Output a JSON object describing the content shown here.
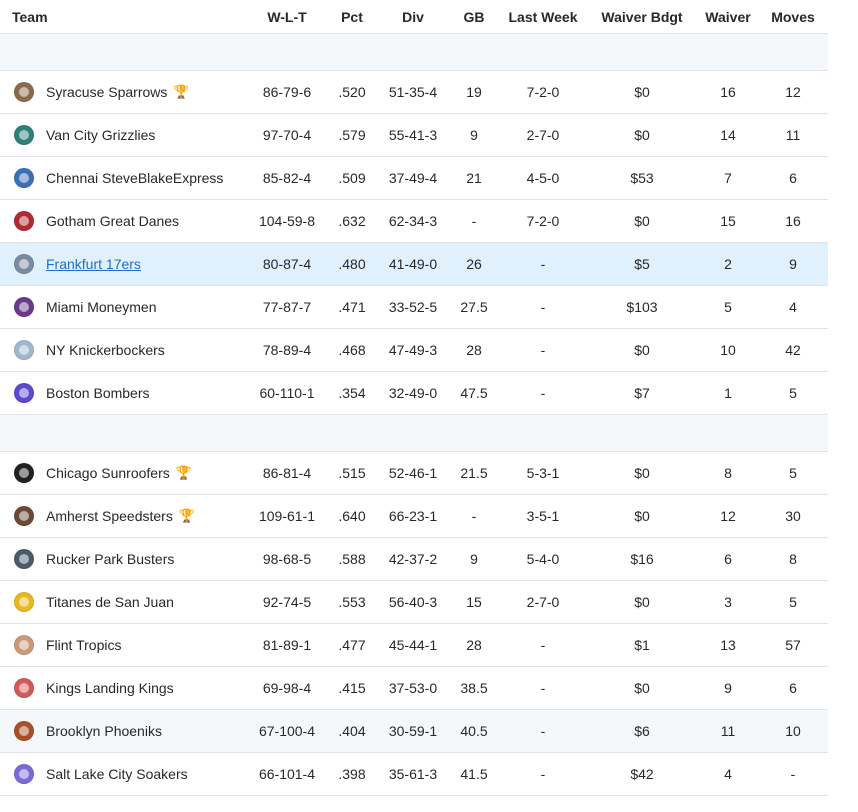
{
  "headers": {
    "team": "Team",
    "wlt": "W-L-T",
    "pct": "Pct",
    "div": "Div",
    "gb": "GB",
    "last_week": "Last Week",
    "waiver_bdgt": "Waiver Bdgt",
    "waiver": "Waiver",
    "moves": "Moves"
  },
  "colors": {
    "link": "#1d6fce",
    "highlight_row": "#e0f0fc",
    "divider": "#f5f8fa",
    "border": "#e0e4e9"
  },
  "division1": [
    {
      "team": "Syracuse Sparrows",
      "trophy": "bronze-trophy-icon",
      "logo": "#8a6a4a",
      "wlt": "86-79-6",
      "pct": ".520",
      "div": "51-35-4",
      "gb": "19",
      "last_week": "7-2-0",
      "bdgt": "$0",
      "waiver": "16",
      "moves": "12"
    },
    {
      "team": "Van City Grizzlies",
      "trophy": "",
      "logo": "#2f7f7a",
      "wlt": "97-70-4",
      "pct": ".579",
      "div": "55-41-3",
      "gb": "9",
      "last_week": "2-7-0",
      "bdgt": "$0",
      "waiver": "14",
      "moves": "11"
    },
    {
      "team": "Chennai SteveBlakeExpress",
      "trophy": "",
      "logo": "#3b6fb6",
      "wlt": "85-82-4",
      "pct": ".509",
      "div": "37-49-4",
      "gb": "21",
      "last_week": "4-5-0",
      "bdgt": "$53",
      "waiver": "7",
      "moves": "6"
    },
    {
      "team": "Gotham Great Danes",
      "trophy": "",
      "logo": "#b02a35",
      "wlt": "104-59-8",
      "pct": ".632",
      "div": "62-34-3",
      "gb": "-",
      "last_week": "7-2-0",
      "bdgt": "$0",
      "waiver": "15",
      "moves": "16"
    },
    {
      "team": "Frankfurt 17ers",
      "trophy": "",
      "logo": "#7a8aa0",
      "wlt": "80-87-4",
      "pct": ".480",
      "div": "41-49-0",
      "gb": "26",
      "last_week": "-",
      "bdgt": "$5",
      "waiver": "2",
      "moves": "9",
      "is_user": true
    },
    {
      "team": "Miami Moneymen",
      "trophy": "",
      "logo": "#6a3a8a",
      "wlt": "77-87-7",
      "pct": ".471",
      "div": "33-52-5",
      "gb": "27.5",
      "last_week": "-",
      "bdgt": "$103",
      "waiver": "5",
      "moves": "4"
    },
    {
      "team": "NY Knickerbockers",
      "trophy": "",
      "logo": "#9fb8cf",
      "wlt": "78-89-4",
      "pct": ".468",
      "div": "47-49-3",
      "gb": "28",
      "last_week": "-",
      "bdgt": "$0",
      "waiver": "10",
      "moves": "42"
    },
    {
      "team": "Boston Bombers",
      "trophy": "",
      "logo": "#5a4ad0",
      "wlt": "60-110-1",
      "pct": ".354",
      "div": "32-49-0",
      "gb": "47.5",
      "last_week": "-",
      "bdgt": "$7",
      "waiver": "1",
      "moves": "5"
    }
  ],
  "division2": [
    {
      "team": "Chicago Sunroofers",
      "trophy": "gold-trophy-icon",
      "logo": "#222222",
      "wlt": "86-81-4",
      "pct": ".515",
      "div": "52-46-1",
      "gb": "21.5",
      "last_week": "5-3-1",
      "bdgt": "$0",
      "waiver": "8",
      "moves": "5"
    },
    {
      "team": "Amherst Speedsters",
      "trophy": "silver-trophy-icon",
      "logo": "#6b4a3a",
      "wlt": "109-61-1",
      "pct": ".640",
      "div": "66-23-1",
      "gb": "-",
      "last_week": "3-5-1",
      "bdgt": "$0",
      "waiver": "12",
      "moves": "30"
    },
    {
      "team": "Rucker Park Busters",
      "trophy": "",
      "logo": "#4a5a6a",
      "wlt": "98-68-5",
      "pct": ".588",
      "div": "42-37-2",
      "gb": "9",
      "last_week": "5-4-0",
      "bdgt": "$16",
      "waiver": "6",
      "moves": "8"
    },
    {
      "team": "Titanes de San Juan",
      "trophy": "",
      "logo": "#e8b820",
      "wlt": "92-74-5",
      "pct": ".553",
      "div": "56-40-3",
      "gb": "15",
      "last_week": "2-7-0",
      "bdgt": "$0",
      "waiver": "3",
      "moves": "5"
    },
    {
      "team": "Flint Tropics",
      "trophy": "",
      "logo": "#c89a7a",
      "wlt": "81-89-1",
      "pct": ".477",
      "div": "45-44-1",
      "gb": "28",
      "last_week": "-",
      "bdgt": "$1",
      "waiver": "13",
      "moves": "57"
    },
    {
      "team": "Kings Landing Kings",
      "trophy": "",
      "logo": "#d05a5a",
      "wlt": "69-98-4",
      "pct": ".415",
      "div": "37-53-0",
      "gb": "38.5",
      "last_week": "-",
      "bdgt": "$0",
      "waiver": "9",
      "moves": "6"
    },
    {
      "team": "Brooklyn Phoeniks",
      "trophy": "",
      "logo": "#a8502a",
      "wlt": "67-100-4",
      "pct": ".404",
      "div": "30-59-1",
      "gb": "40.5",
      "last_week": "-",
      "bdgt": "$6",
      "waiver": "11",
      "moves": "10",
      "shaded": true
    },
    {
      "team": "Salt Lake City Soakers",
      "trophy": "",
      "logo": "#7a6ad8",
      "wlt": "66-101-4",
      "pct": ".398",
      "div": "35-61-3",
      "gb": "41.5",
      "last_week": "-",
      "bdgt": "$42",
      "waiver": "4",
      "moves": "-"
    }
  ]
}
